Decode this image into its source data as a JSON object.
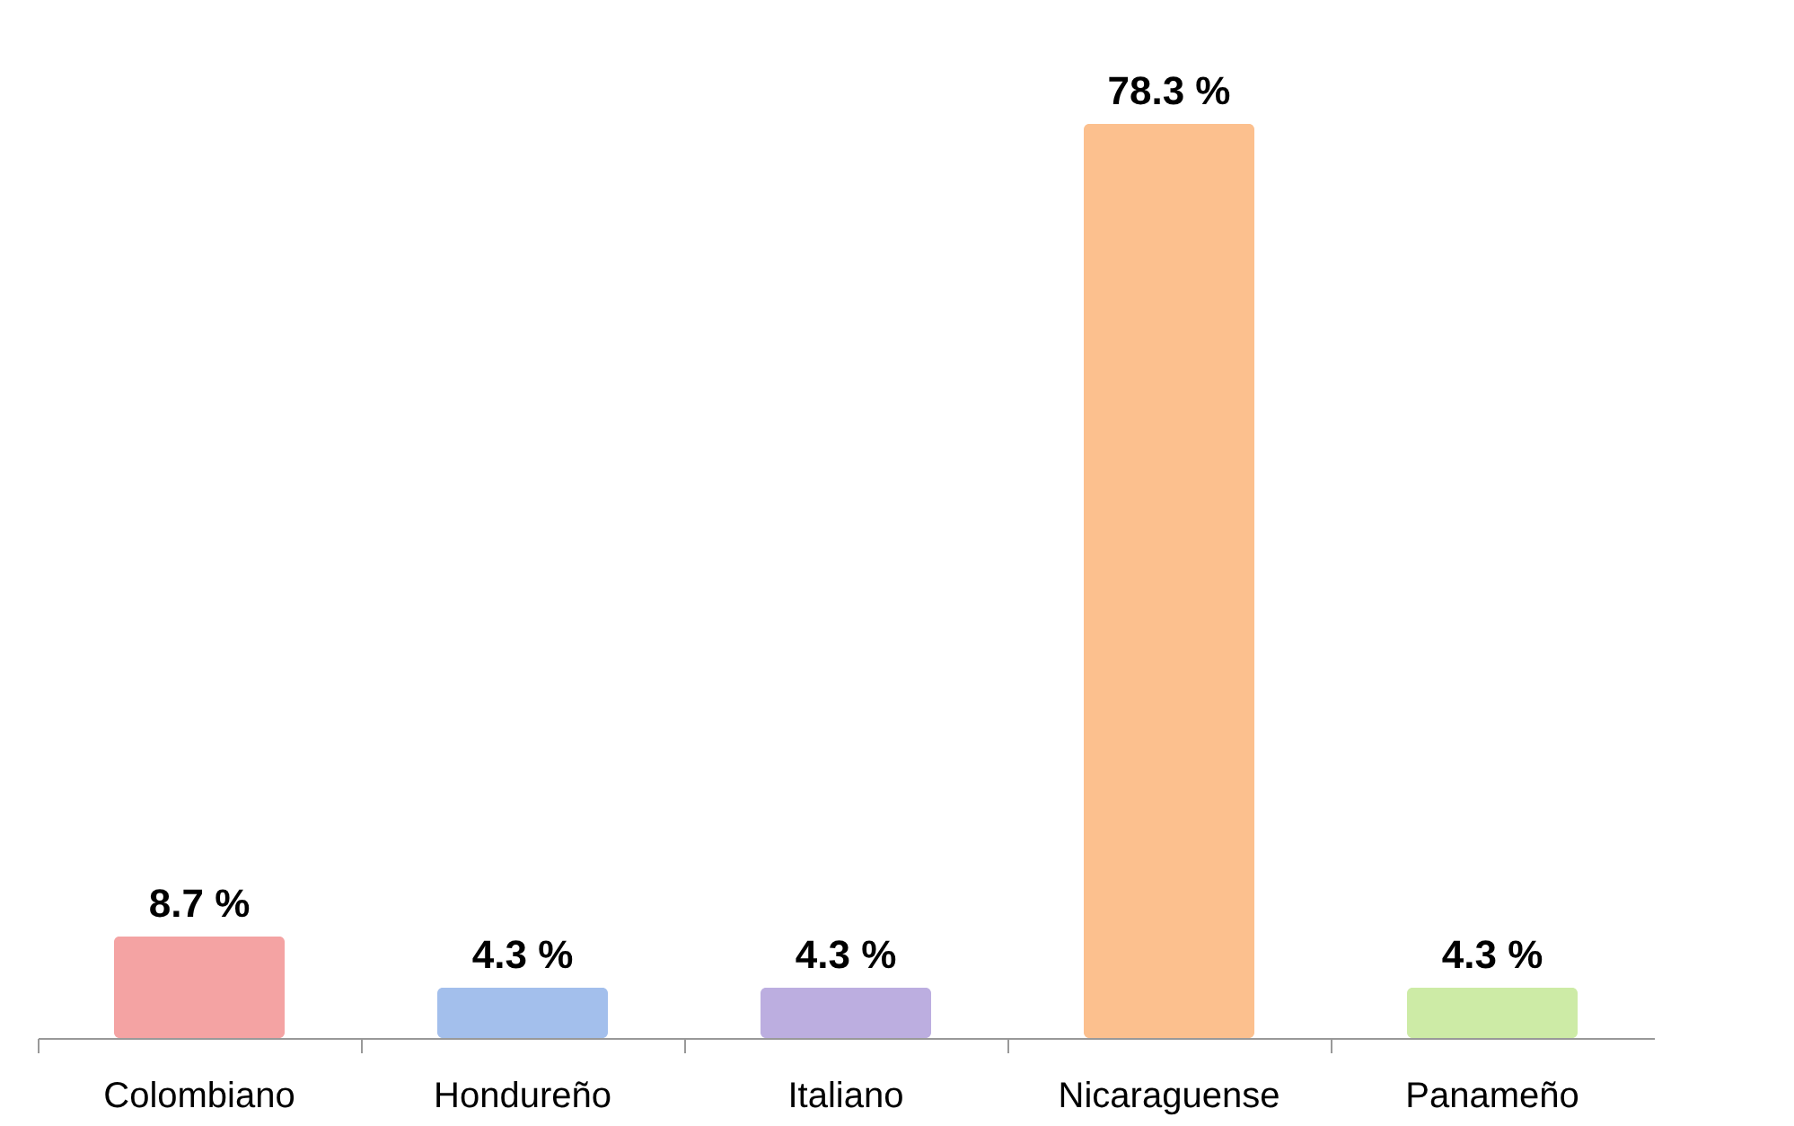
{
  "chart_data": {
    "type": "bar",
    "categories": [
      "Colombiano",
      "Hondureño",
      "Italiano",
      "Nicaraguense",
      "Panameño"
    ],
    "values": [
      8.7,
      4.3,
      4.3,
      78.3,
      4.3
    ],
    "colors": [
      "#f4a3a3",
      "#a3bfec",
      "#bcaee0",
      "#fcc08e",
      "#cdeba6"
    ],
    "value_labels": [
      "8.7  %",
      "4.3 %",
      "4.3  %",
      "78.3 %",
      "4.3 %"
    ]
  }
}
